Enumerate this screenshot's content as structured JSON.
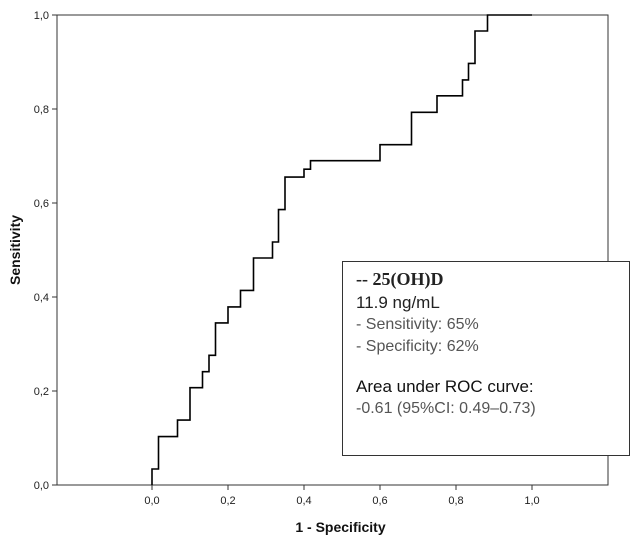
{
  "chart_data": {
    "type": "line",
    "xlabel": "1 - Specificity",
    "ylabel": "Sensitivity",
    "xlim": [
      -0.25,
      1.2
    ],
    "ylim": [
      0.0,
      1.0
    ],
    "xticks": [
      "0,0",
      "0,2",
      "0,4",
      "0,6",
      "0,8",
      "1,0"
    ],
    "xtick_values": [
      0.0,
      0.2,
      0.4,
      0.6,
      0.8,
      1.0
    ],
    "yticks": [
      "0,0",
      "0,2",
      "0,4",
      "0,6",
      "0,8",
      "1,0"
    ],
    "ytick_values": [
      0.0,
      0.2,
      0.4,
      0.6,
      0.8,
      1.0
    ],
    "grid": false,
    "series": [
      {
        "style": "step",
        "color": "#000000",
        "x": [
          0.0,
          0.0,
          0.017,
          0.017,
          0.067,
          0.067,
          0.1,
          0.1,
          0.133,
          0.133,
          0.15,
          0.15,
          0.167,
          0.167,
          0.167,
          0.167,
          0.2,
          0.2,
          0.233,
          0.233,
          0.267,
          0.267,
          0.317,
          0.317,
          0.333,
          0.333,
          0.35,
          0.35,
          0.367,
          0.367,
          0.4,
          0.4,
          0.417,
          0.417,
          0.433,
          0.433,
          0.6,
          0.6,
          0.683,
          0.683,
          0.75,
          0.75,
          0.817,
          0.817,
          0.833,
          0.833,
          0.85,
          0.85,
          0.883,
          0.883,
          0.9,
          0.9,
          1.0
        ],
        "y": [
          0.0,
          0.034,
          0.034,
          0.103,
          0.103,
          0.138,
          0.138,
          0.207,
          0.207,
          0.241,
          0.241,
          0.276,
          0.276,
          0.31,
          0.31,
          0.345,
          0.345,
          0.379,
          0.379,
          0.414,
          0.414,
          0.483,
          0.483,
          0.517,
          0.517,
          0.586,
          0.586,
          0.655,
          0.655,
          0.655,
          0.655,
          0.672,
          0.672,
          0.69,
          0.69,
          0.69,
          0.69,
          0.724,
          0.724,
          0.793,
          0.793,
          0.828,
          0.828,
          0.862,
          0.862,
          0.897,
          0.897,
          0.966,
          0.966,
          1.0,
          1.0,
          1.0,
          1.0
        ]
      }
    ],
    "legend_placement": "lower-right"
  },
  "legend": {
    "title": "-- 25(OH)D",
    "cutoff": "11.9 ng/mL",
    "sensitivity": "- Sensitivity: 65%",
    "specificity": "- Specificity: 62%",
    "auc_label": "Area under ROC curve:",
    "auc_value": "-0.61 (95%CI: 0.49–0.73)"
  }
}
